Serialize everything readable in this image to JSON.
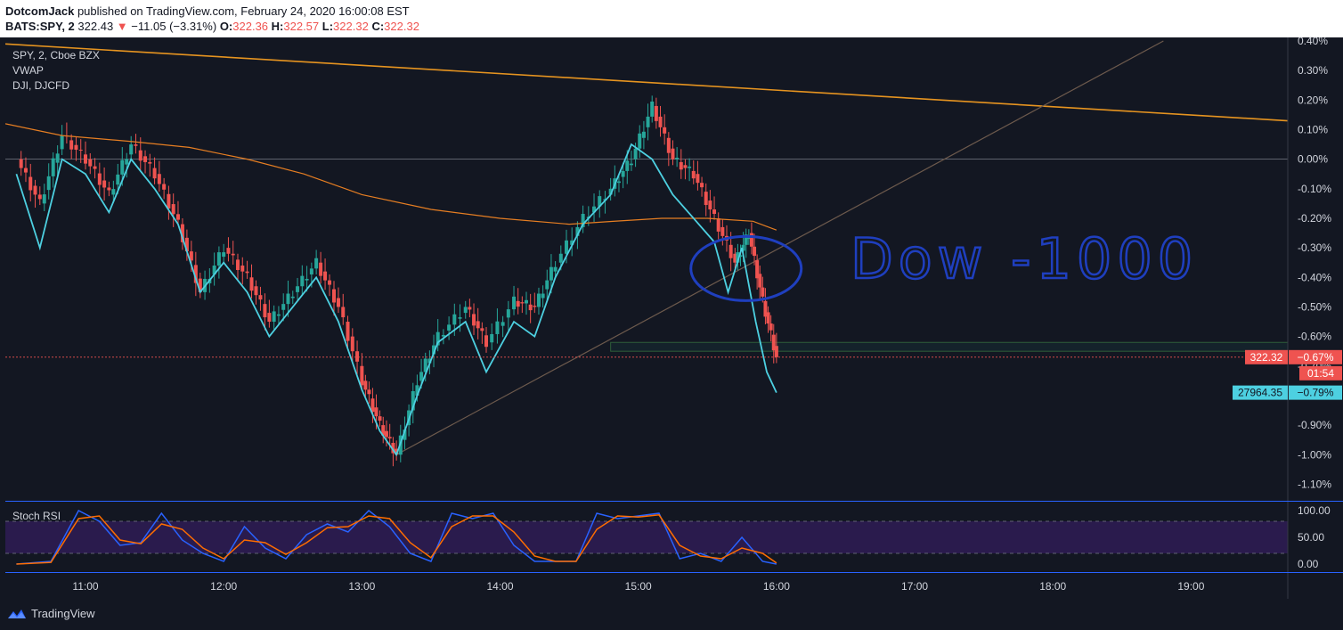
{
  "header": {
    "author": "DotcomJack",
    "published_text": "published on TradingView.com, February 24, 2020 16:00:08 EST",
    "symbol_line": "BATS:SPY, 2",
    "last_price": "322.43",
    "change_arrow": "▼",
    "change": "−11.05 (−3.31%)",
    "o_label": "O:",
    "o_value": "322.36",
    "h_label": "H:",
    "h_value": "322.57",
    "l_label": "L:",
    "l_value": "322.32",
    "c_label": "C:",
    "c_value": "322.32"
  },
  "legend": {
    "line1": "SPY, 2, Cboe BZX",
    "line2": "VWAP",
    "line3": "DJI, DJCFD"
  },
  "annotation_text": "Dow -1000",
  "price_badge": "322.32",
  "price_badge_pct": "−0.67%",
  "countdown": "01:54",
  "dji_badge": "27964.35",
  "dji_badge_pct": "−0.79%",
  "rsi_title": "Stoch RSI",
  "footer_brand": "TradingView",
  "colors": {
    "background": "#131722",
    "up_candle": "#26a69a",
    "down_candle": "#ef5350",
    "vwap": "#e67e22",
    "dji_line": "#4dd0e1",
    "trendline_orange": "#e69420",
    "rsi_k": "#2962ff",
    "rsi_d": "#ff6d00",
    "rsi_band": "#2a1b4d",
    "annotation": "#1f3fbf"
  },
  "chart_data": {
    "type": "line",
    "title": "",
    "x_ticks": [
      "11:00",
      "12:00",
      "13:00",
      "14:00",
      "15:00",
      "16:00",
      "17:00",
      "18:00",
      "19:00"
    ],
    "y_ticks": [
      "0.40%",
      "0.30%",
      "0.20%",
      "0.10%",
      "0.00%",
      "-0.10%",
      "-0.20%",
      "-0.30%",
      "-0.40%",
      "-0.50%",
      "-0.60%",
      "-0.70%",
      "-0.80%",
      "-0.90%",
      "-1.00%",
      "-1.10%"
    ],
    "ylim": [
      -1.15,
      0.4
    ],
    "xlim_hours": [
      10.42,
      19.7
    ],
    "series": [
      {
        "name": "SPY, 2, Cboe BZX",
        "x_hours": [
          10.5,
          10.67,
          10.83,
          11.0,
          11.17,
          11.33,
          11.5,
          11.67,
          11.83,
          12.0,
          12.17,
          12.33,
          12.5,
          12.67,
          12.83,
          13.0,
          13.13,
          13.25,
          13.4,
          13.55,
          13.75,
          13.9,
          14.1,
          14.25,
          14.4,
          14.6,
          14.8,
          14.95,
          15.1,
          15.25,
          15.4,
          15.55,
          15.7,
          15.8,
          15.9,
          16.0
        ],
        "y_pct": [
          0.0,
          -0.15,
          0.08,
          0.0,
          -0.12,
          0.05,
          -0.05,
          -0.22,
          -0.45,
          -0.3,
          -0.4,
          -0.55,
          -0.45,
          -0.35,
          -0.5,
          -0.75,
          -0.9,
          -1.0,
          -0.75,
          -0.6,
          -0.5,
          -0.62,
          -0.48,
          -0.5,
          -0.35,
          -0.2,
          -0.1,
          0.0,
          0.18,
          0.0,
          -0.05,
          -0.2,
          -0.35,
          -0.25,
          -0.48,
          -0.67
        ]
      },
      {
        "name": "VWAP",
        "x_hours": [
          10.42,
          10.83,
          11.33,
          11.75,
          12.17,
          12.58,
          13.0,
          13.5,
          14.0,
          14.5,
          14.83,
          15.17,
          15.5,
          15.83,
          16.0
        ],
        "y_pct": [
          0.12,
          0.08,
          0.06,
          0.04,
          0.0,
          -0.05,
          -0.12,
          -0.17,
          -0.2,
          -0.22,
          -0.21,
          -0.2,
          -0.2,
          -0.21,
          -0.24
        ]
      },
      {
        "name": "DJI, DJCFD",
        "x_hours": [
          10.5,
          10.67,
          10.83,
          11.0,
          11.17,
          11.33,
          11.5,
          11.67,
          11.83,
          12.0,
          12.17,
          12.33,
          12.5,
          12.67,
          12.83,
          13.0,
          13.13,
          13.25,
          13.4,
          13.55,
          13.75,
          13.9,
          14.1,
          14.25,
          14.4,
          14.6,
          14.8,
          14.95,
          15.1,
          15.25,
          15.4,
          15.55,
          15.65,
          15.75,
          15.85,
          15.93,
          16.0
        ],
        "y_pct": [
          -0.05,
          -0.3,
          0.0,
          -0.05,
          -0.18,
          0.0,
          -0.1,
          -0.22,
          -0.45,
          -0.35,
          -0.45,
          -0.6,
          -0.5,
          -0.4,
          -0.55,
          -0.78,
          -0.92,
          -1.0,
          -0.8,
          -0.62,
          -0.55,
          -0.72,
          -0.55,
          -0.6,
          -0.4,
          -0.22,
          -0.12,
          0.05,
          0.0,
          -0.12,
          -0.2,
          -0.28,
          -0.45,
          -0.3,
          -0.55,
          -0.72,
          -0.79
        ]
      }
    ],
    "rsi": {
      "title": "Stoch RSI",
      "y_ticks": [
        "100.00",
        "50.00",
        "0.00"
      ],
      "ylim": [
        0,
        100
      ],
      "bands": [
        20,
        80
      ],
      "x_hours": [
        10.5,
        10.75,
        10.95,
        11.1,
        11.25,
        11.4,
        11.55,
        11.7,
        11.85,
        12.0,
        12.15,
        12.3,
        12.45,
        12.6,
        12.75,
        12.9,
        13.05,
        13.2,
        13.35,
        13.5,
        13.65,
        13.8,
        13.95,
        14.1,
        14.25,
        14.4,
        14.55,
        14.7,
        14.85,
        15.0,
        15.15,
        15.3,
        15.45,
        15.6,
        15.75,
        15.9,
        16.0
      ],
      "k": [
        0,
        5,
        100,
        80,
        35,
        40,
        95,
        45,
        20,
        5,
        70,
        30,
        10,
        55,
        75,
        60,
        100,
        70,
        20,
        5,
        95,
        85,
        95,
        35,
        5,
        5,
        5,
        95,
        85,
        90,
        95,
        10,
        20,
        5,
        50,
        5,
        0
      ],
      "d": [
        0,
        3,
        85,
        90,
        45,
        38,
        75,
        65,
        30,
        10,
        45,
        40,
        18,
        40,
        68,
        70,
        90,
        85,
        40,
        12,
        70,
        90,
        90,
        60,
        15,
        5,
        5,
        65,
        90,
        88,
        92,
        35,
        15,
        10,
        30,
        20,
        2
      ]
    }
  }
}
